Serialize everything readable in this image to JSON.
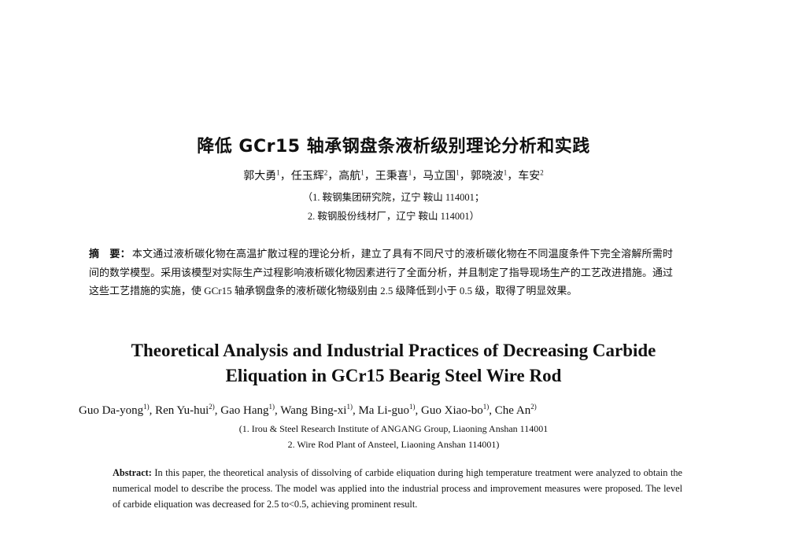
{
  "cn": {
    "title": "降低 GCr15 轴承钢盘条液析级别理论分析和实践",
    "authors": [
      {
        "name": "郭大勇",
        "sup": "1"
      },
      {
        "name": "任玉辉",
        "sup": "2"
      },
      {
        "name": "高航",
        "sup": "1"
      },
      {
        "name": "王秉喜",
        "sup": "1"
      },
      {
        "name": "马立国",
        "sup": "1"
      },
      {
        "name": "郭晓波",
        "sup": "1"
      },
      {
        "name": "车安",
        "sup": "2"
      }
    ],
    "affiliation_1": "（1. 鞍钢集团研究院，辽宁 鞍山 114001；",
    "affiliation_2": "2. 鞍钢股份线材厂，辽宁 鞍山 114001）",
    "abstract_label": "摘　要：",
    "abstract": "本文通过液析碳化物在高温扩散过程的理论分析，建立了具有不同尺寸的液析碳化物在不同温度条件下完全溶解所需时间的数学模型。采用该模型对实际生产过程影响液析碳化物因素进行了全面分析，并且制定了指导现场生产的工艺改进措施。通过这些工艺措施的实施，使 GCr15 轴承钢盘条的液析碳化物级别由 2.5 级降低到小于 0.5 级，取得了明显效果。"
  },
  "en": {
    "title_line1": "Theoretical Analysis and Industrial Practices of Decreasing Carbide",
    "title_line2": "Eliquation in GCr15 Bearig Steel Wire Rod",
    "authors": [
      {
        "name": "Guo Da-yong",
        "sup": "1)"
      },
      {
        "name": "Ren Yu-hui",
        "sup": "2)"
      },
      {
        "name": "Gao Hang",
        "sup": "1)"
      },
      {
        "name": "Wang Bing-xi",
        "sup": "1)"
      },
      {
        "name": "Ma Li-guo",
        "sup": "1)"
      },
      {
        "name": "Guo Xiao-bo",
        "sup": "1)"
      },
      {
        "name": "Che An",
        "sup": "2)"
      }
    ],
    "affiliation_1": "(1. Irou & Steel Research Institute of ANGANG Group, Liaoning Anshan 114001",
    "affiliation_2": "2. Wire Rod Plant of Ansteel, Liaoning Anshan 114001)",
    "abstract_label": "Abstract:",
    "abstract": " In this paper, the theoretical analysis of dissolving of carbide eliquation during high temperature treatment were analyzed to obtain the numerical model to describe the process. The model was applied into the industrial process and improvement measures were proposed. The level of carbide eliquation was decreased for 2.5 to<0.5, achieving prominent result."
  }
}
